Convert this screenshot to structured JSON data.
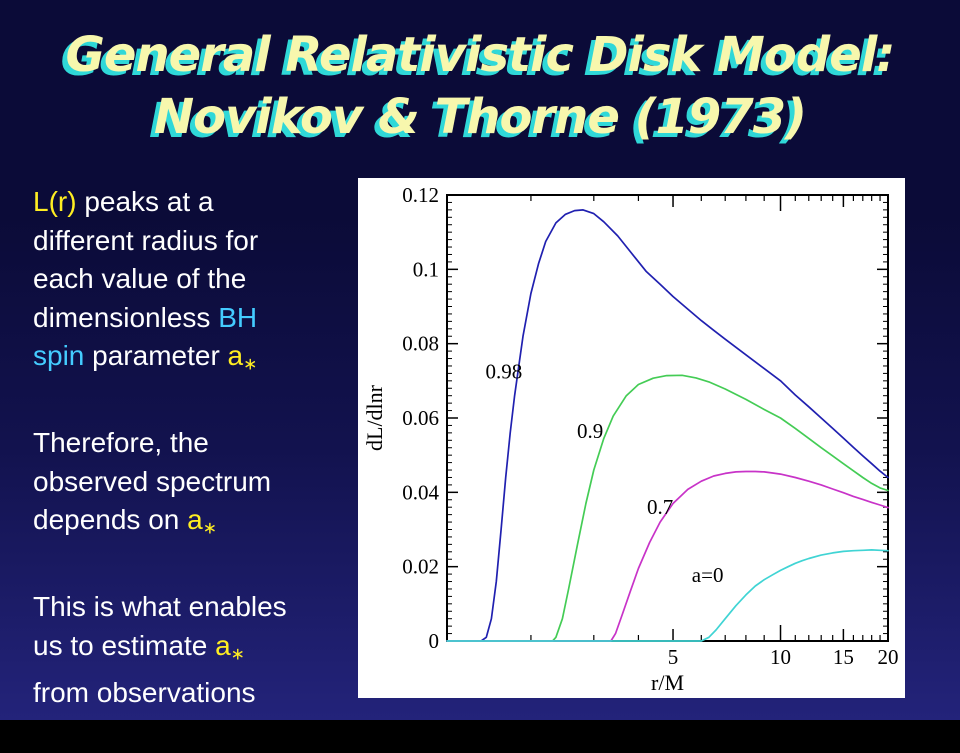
{
  "slide": {
    "title": {
      "line1": "General Relativistic Disk Model:",
      "line2": "Novikov & Thorne (1973)"
    },
    "colors": {
      "bg_top": "#0b0b38",
      "bg_mid": "#12124e",
      "bg_bottom": "#23237a",
      "title_fill": "#f7f7ad",
      "title_shadow": "#2fd8d8",
      "white": "#ffffff",
      "yellow": "#ffee22",
      "cyan": "#44ccff",
      "plot_bg": "#ffffff",
      "axis": "#000000"
    },
    "paragraphs": [
      {
        "lines": [
          [
            {
              "text": "L(r)",
              "style": "yellow"
            },
            {
              "text": " peaks at a",
              "style": "white"
            }
          ],
          [
            {
              "text": "different radius for",
              "style": "white"
            }
          ],
          [
            {
              "text": "each value of the",
              "style": "white"
            }
          ],
          [
            {
              "text": "dimensionless ",
              "style": "white"
            },
            {
              "text": "BH",
              "style": "cyan"
            }
          ],
          [
            {
              "text": "spin",
              "style": "cyan"
            },
            {
              "text": " parameter ",
              "style": "white"
            },
            {
              "text": "a",
              "style": "yellow"
            },
            {
              "text": "∗",
              "style": "yellow-sub"
            }
          ]
        ]
      },
      {
        "lines": [
          [
            {
              "text": "Therefore, the",
              "style": "white"
            }
          ],
          [
            {
              "text": "observed spectrum",
              "style": "white"
            }
          ],
          [
            {
              "text": "depends on ",
              "style": "white"
            },
            {
              "text": "a",
              "style": "yellow"
            },
            {
              "text": "∗",
              "style": "yellow-sub"
            }
          ]
        ]
      },
      {
        "lines": [
          [
            {
              "text": "This is what enables",
              "style": "white"
            }
          ],
          [
            {
              "text": "us to estimate ",
              "style": "white"
            },
            {
              "text": "a",
              "style": "yellow"
            },
            {
              "text": "∗",
              "style": "yellow-sub"
            }
          ],
          [
            {
              "text": "from observations",
              "style": "white"
            }
          ]
        ]
      }
    ]
  },
  "chart_data": {
    "type": "line",
    "title": "",
    "xlabel": "r/M",
    "ylabel": "dL/dlnr",
    "x_scale": "log",
    "xlim": [
      1.164,
      20
    ],
    "ylim": [
      0,
      0.12
    ],
    "grid": false,
    "legend": "labels drawn next to curves",
    "x_major_ticks": [
      5,
      10,
      15,
      20
    ],
    "x_major_labels": [
      "5",
      "10",
      "15",
      "20"
    ],
    "x_minor_ticks": [
      2,
      3,
      4,
      6,
      7,
      8,
      9,
      11,
      12,
      13,
      14,
      16,
      17,
      18,
      19
    ],
    "y_major_ticks": [
      0,
      0.02,
      0.04,
      0.06,
      0.08,
      0.1,
      0.12
    ],
    "y_major_labels": [
      "0",
      "0.02",
      "0.04",
      "0.06",
      "0.08",
      "0.1",
      "0.12"
    ],
    "y_minor_step": 0.002,
    "annotations": [
      {
        "text": "0.98",
        "x": 1.68,
        "y": 0.0725
      },
      {
        "text": "0.9",
        "x": 2.93,
        "y": 0.0565
      },
      {
        "text": "0.7",
        "x": 4.6,
        "y": 0.036
      },
      {
        "text": "a=0",
        "x": 6.25,
        "y": 0.0178
      }
    ],
    "series": [
      {
        "name": "a098",
        "label": "0.98",
        "color": "#2020b0",
        "points": [
          [
            1.164,
            0
          ],
          [
            1.45,
            0
          ],
          [
            1.5,
            0.001
          ],
          [
            1.55,
            0.006
          ],
          [
            1.6,
            0.016
          ],
          [
            1.65,
            0.03
          ],
          [
            1.7,
            0.044
          ],
          [
            1.75,
            0.056
          ],
          [
            1.8,
            0.066
          ],
          [
            1.9,
            0.082
          ],
          [
            2.0,
            0.0935
          ],
          [
            2.1,
            0.1015
          ],
          [
            2.2,
            0.1075
          ],
          [
            2.35,
            0.1125
          ],
          [
            2.5,
            0.1148
          ],
          [
            2.65,
            0.1158
          ],
          [
            2.8,
            0.116
          ],
          [
            3.0,
            0.115
          ],
          [
            3.2,
            0.1128
          ],
          [
            3.5,
            0.109
          ],
          [
            3.8,
            0.1047
          ],
          [
            4.2,
            0.0995
          ],
          [
            4.6,
            0.096
          ],
          [
            5.0,
            0.0927
          ],
          [
            5.5,
            0.0893
          ],
          [
            6.0,
            0.0862
          ],
          [
            6.5,
            0.0836
          ],
          [
            7.0,
            0.0812
          ],
          [
            8.0,
            0.077
          ],
          [
            9.0,
            0.0733
          ],
          [
            10.0,
            0.07
          ],
          [
            11.0,
            0.0662
          ],
          [
            12.0,
            0.063
          ],
          [
            13.0,
            0.06
          ],
          [
            14.0,
            0.0572
          ],
          [
            15.0,
            0.0546
          ],
          [
            16.0,
            0.0521
          ],
          [
            17.0,
            0.0498
          ],
          [
            18.0,
            0.0477
          ],
          [
            19.0,
            0.0457
          ],
          [
            20.0,
            0.044
          ]
        ]
      },
      {
        "name": "a09",
        "label": "0.9",
        "color": "#44cc55",
        "points": [
          [
            1.164,
            0
          ],
          [
            2.3,
            0
          ],
          [
            2.35,
            0.001
          ],
          [
            2.45,
            0.006
          ],
          [
            2.55,
            0.014
          ],
          [
            2.7,
            0.026
          ],
          [
            2.85,
            0.037
          ],
          [
            3.0,
            0.046
          ],
          [
            3.2,
            0.0545
          ],
          [
            3.4,
            0.0605
          ],
          [
            3.7,
            0.066
          ],
          [
            4.0,
            0.069
          ],
          [
            4.4,
            0.0707
          ],
          [
            4.8,
            0.0714
          ],
          [
            5.3,
            0.0715
          ],
          [
            5.8,
            0.0708
          ],
          [
            6.3,
            0.0697
          ],
          [
            7.0,
            0.0678
          ],
          [
            8.0,
            0.065
          ],
          [
            9.0,
            0.0623
          ],
          [
            10.0,
            0.06
          ],
          [
            11.0,
            0.0572
          ],
          [
            12.0,
            0.0545
          ],
          [
            13.0,
            0.052
          ],
          [
            14.0,
            0.0498
          ],
          [
            15.0,
            0.0477
          ],
          [
            16.0,
            0.0458
          ],
          [
            17.0,
            0.044
          ],
          [
            18.0,
            0.0424
          ],
          [
            19.0,
            0.0412
          ],
          [
            20.0,
            0.0405
          ]
        ]
      },
      {
        "name": "a07",
        "label": "0.7",
        "color": "#c833c8",
        "points": [
          [
            1.164,
            0
          ],
          [
            3.35,
            0
          ],
          [
            3.45,
            0.002
          ],
          [
            3.6,
            0.007
          ],
          [
            3.8,
            0.0135
          ],
          [
            4.0,
            0.0195
          ],
          [
            4.3,
            0.0265
          ],
          [
            4.6,
            0.032
          ],
          [
            5.0,
            0.037
          ],
          [
            5.5,
            0.0408
          ],
          [
            6.0,
            0.043
          ],
          [
            6.5,
            0.0444
          ],
          [
            7.0,
            0.0451
          ],
          [
            7.5,
            0.0455
          ],
          [
            8.0,
            0.0456
          ],
          [
            8.5,
            0.0456
          ],
          [
            9.0,
            0.0455
          ],
          [
            9.5,
            0.0452
          ],
          [
            10.0,
            0.0449
          ],
          [
            11.0,
            0.044
          ],
          [
            12.0,
            0.043
          ],
          [
            13.0,
            0.042
          ],
          [
            14.0,
            0.0409
          ],
          [
            15.0,
            0.0399
          ],
          [
            16.0,
            0.0389
          ],
          [
            17.0,
            0.0381
          ],
          [
            18.0,
            0.0373
          ],
          [
            19.0,
            0.0366
          ],
          [
            20.0,
            0.0359
          ]
        ]
      },
      {
        "name": "a0",
        "label": "a=0",
        "color": "#40d4d4",
        "points": [
          [
            1.164,
            0
          ],
          [
            6.0,
            0
          ],
          [
            6.3,
            0.001
          ],
          [
            6.6,
            0.003
          ],
          [
            7.0,
            0.006
          ],
          [
            7.5,
            0.0095
          ],
          [
            8.0,
            0.0124
          ],
          [
            8.5,
            0.0148
          ],
          [
            9.0,
            0.0165
          ],
          [
            9.5,
            0.0178
          ],
          [
            10.0,
            0.019
          ],
          [
            10.5,
            0.02
          ],
          [
            11.0,
            0.0209
          ],
          [
            11.5,
            0.0216
          ],
          [
            12.0,
            0.0222
          ],
          [
            13.0,
            0.0231
          ],
          [
            14.0,
            0.0237
          ],
          [
            15.0,
            0.0241
          ],
          [
            16.0,
            0.0243
          ],
          [
            17.0,
            0.0244
          ],
          [
            18.0,
            0.0245
          ],
          [
            19.0,
            0.0244
          ],
          [
            20.0,
            0.0243
          ]
        ]
      }
    ]
  }
}
